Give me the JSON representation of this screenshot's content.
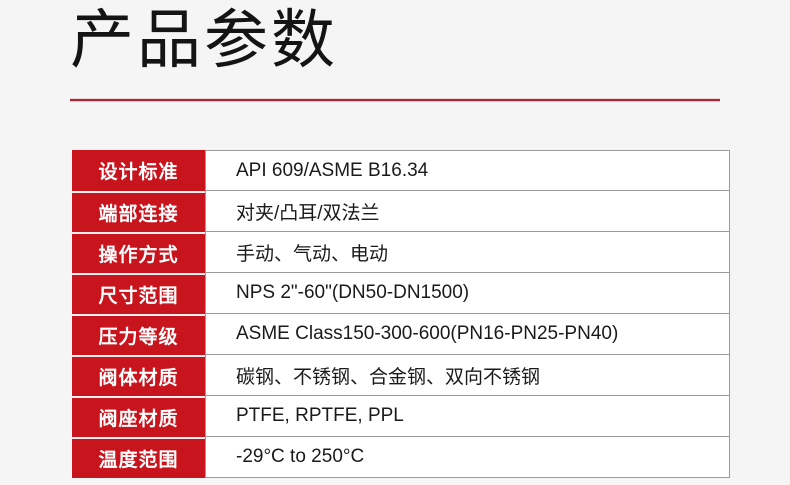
{
  "title": "产品参数",
  "colors": {
    "accent_red": "#c8141d",
    "underline_red": "#a22c3b",
    "border_gray": "#9c9c9c",
    "page_background": "#f6f5f6"
  },
  "table": {
    "rows": [
      {
        "label": "设计标准",
        "value": "API 609/ASME B16.34"
      },
      {
        "label": "端部连接",
        "value": "对夹/凸耳/双法兰"
      },
      {
        "label": "操作方式",
        "value": "手动、气动、电动"
      },
      {
        "label": "尺寸范围",
        "value": "NPS 2\"-60\"(DN50-DN1500)"
      },
      {
        "label": "压力等级",
        "value": "ASME Class150-300-600(PN16-PN25-PN40)"
      },
      {
        "label": "阀体材质",
        "value": "碳钢、不锈钢、合金钢、双向不锈钢"
      },
      {
        "label": "阀座材质",
        "value": "PTFE, RPTFE, PPL"
      },
      {
        "label": "温度范围",
        "value": "-29°C to 250°C"
      }
    ]
  }
}
